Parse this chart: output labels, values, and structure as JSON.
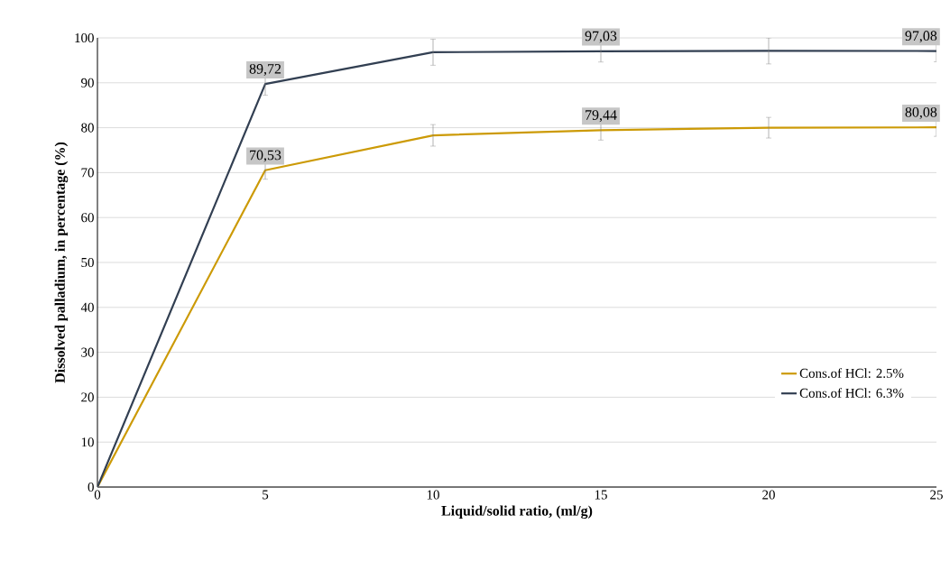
{
  "chart_data": {
    "type": "line",
    "xlabel": "Liquid/solid ratio, (ml/g)",
    "ylabel": "Dissolved palladium, in percentage (%)",
    "x": [
      0,
      5,
      10,
      15,
      20,
      25
    ],
    "series": [
      {
        "name": "Cons.of HCl: 2.5%",
        "color": "#cc9a06",
        "values": [
          0,
          70.53,
          78.3,
          79.44,
          80.0,
          80.08
        ],
        "errors": [
          null,
          2.0,
          2.4,
          2.2,
          2.3,
          2.0
        ],
        "value_labels": [
          null,
          "70,53",
          null,
          "79,44",
          null,
          "80,08"
        ]
      },
      {
        "name": "Cons.of HCl: 6.3%",
        "color": "#323f52",
        "values": [
          0,
          89.72,
          96.8,
          97.03,
          97.1,
          97.08
        ],
        "errors": [
          null,
          2.5,
          2.9,
          2.4,
          2.9,
          2.4
        ],
        "value_labels": [
          null,
          "89,72",
          null,
          "97,03",
          null,
          "97,08"
        ]
      }
    ],
    "xlim": [
      0,
      25
    ],
    "xticks": [
      0,
      5,
      10,
      15,
      20,
      25
    ],
    "ylim": [
      0,
      100
    ],
    "yticks": [
      0,
      10,
      20,
      30,
      40,
      50,
      60,
      70,
      80,
      90,
      100
    ],
    "grid": "y",
    "legend": "bottom right",
    "marker": "none",
    "line_style": "solid"
  }
}
